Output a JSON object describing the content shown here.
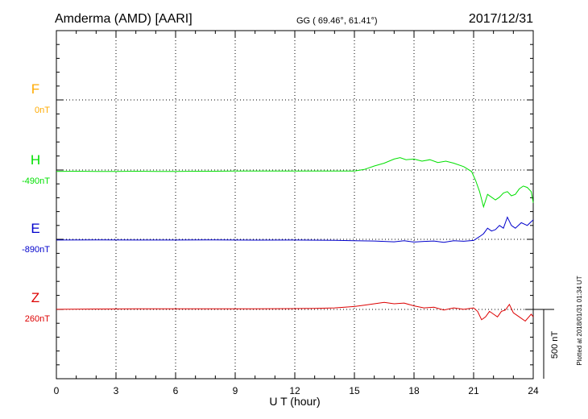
{
  "header": {
    "station": "Amderma (AMD)  [AARI]",
    "coords": "GG ( 69.46°,  61.41°)",
    "date": "2017/12/31"
  },
  "footer": {
    "xlabel": "U T (hour)",
    "plotted": "Plotted at 2018/01/31 01:34 UT",
    "scale_label": "500 nT"
  },
  "colors": {
    "F": "#ffaa00",
    "H": "#00e000",
    "E": "#0000cc",
    "Z": "#dd0000",
    "axis": "#000000",
    "grid": "#000000"
  },
  "chart_data": {
    "type": "line",
    "xlim": [
      0,
      24
    ],
    "x_ticks": [
      "0",
      "3",
      "6",
      "9",
      "12",
      "15",
      "18",
      "21",
      "24"
    ],
    "grid": true,
    "scale_bar_nT": 500,
    "series": [
      {
        "name": "F",
        "baseline_label": "0nT",
        "color": "#ffaa00",
        "points": []
      },
      {
        "name": "H",
        "baseline_label": "-490nT",
        "color": "#00e000",
        "points": [
          [
            0,
            -4
          ],
          [
            1,
            -3
          ],
          [
            2,
            -4
          ],
          [
            3,
            -4
          ],
          [
            4,
            -3
          ],
          [
            5,
            -4
          ],
          [
            6,
            -4
          ],
          [
            7,
            -3
          ],
          [
            8,
            -3
          ],
          [
            9,
            -2
          ],
          [
            10,
            -2
          ],
          [
            11,
            -2
          ],
          [
            12,
            -2
          ],
          [
            13,
            -1
          ],
          [
            14,
            -1
          ],
          [
            15,
            -1
          ],
          [
            15.5,
            10
          ],
          [
            16,
            35
          ],
          [
            16.5,
            55
          ],
          [
            17,
            85
          ],
          [
            17.3,
            95
          ],
          [
            17.6,
            80
          ],
          [
            18,
            85
          ],
          [
            18.4,
            70
          ],
          [
            18.8,
            80
          ],
          [
            19.2,
            60
          ],
          [
            19.6,
            70
          ],
          [
            20,
            55
          ],
          [
            20.5,
            30
          ],
          [
            20.9,
            -5
          ],
          [
            21.1,
            -70
          ],
          [
            21.3,
            -150
          ],
          [
            21.5,
            -260
          ],
          [
            21.7,
            -170
          ],
          [
            21.9,
            -190
          ],
          [
            22.1,
            -210
          ],
          [
            22.3,
            -190
          ],
          [
            22.5,
            -160
          ],
          [
            22.7,
            -150
          ],
          [
            22.9,
            -180
          ],
          [
            23.1,
            -170
          ],
          [
            23.3,
            -130
          ],
          [
            23.5,
            -110
          ],
          [
            23.7,
            -120
          ],
          [
            23.9,
            -150
          ],
          [
            24,
            -230
          ]
        ]
      },
      {
        "name": "E",
        "baseline_label": "-890nT",
        "color": "#0000cc",
        "points": [
          [
            0,
            -5
          ],
          [
            2,
            -4
          ],
          [
            4,
            -5
          ],
          [
            6,
            -5
          ],
          [
            8,
            -4
          ],
          [
            10,
            -6
          ],
          [
            12,
            -5
          ],
          [
            14,
            -7
          ],
          [
            15,
            -10
          ],
          [
            16,
            -12
          ],
          [
            17,
            -18
          ],
          [
            17.5,
            -10
          ],
          [
            18,
            -20
          ],
          [
            18.5,
            -15
          ],
          [
            19,
            -12
          ],
          [
            19.5,
            -22
          ],
          [
            20,
            -10
          ],
          [
            20.5,
            -14
          ],
          [
            21,
            -8
          ],
          [
            21.3,
            20
          ],
          [
            21.5,
            40
          ],
          [
            21.7,
            80
          ],
          [
            21.9,
            60
          ],
          [
            22.1,
            70
          ],
          [
            22.3,
            100
          ],
          [
            22.5,
            80
          ],
          [
            22.7,
            160
          ],
          [
            22.9,
            100
          ],
          [
            23.1,
            80
          ],
          [
            23.4,
            120
          ],
          [
            23.7,
            100
          ],
          [
            24,
            140
          ]
        ]
      },
      {
        "name": "Z",
        "baseline_label": "260nT",
        "color": "#dd0000",
        "points": [
          [
            0,
            -5
          ],
          [
            2,
            -3
          ],
          [
            4,
            -2
          ],
          [
            6,
            -2
          ],
          [
            8,
            -2
          ],
          [
            10,
            -1
          ],
          [
            12,
            0
          ],
          [
            13,
            2
          ],
          [
            14,
            5
          ],
          [
            15,
            15
          ],
          [
            15.5,
            25
          ],
          [
            16,
            35
          ],
          [
            16.5,
            45
          ],
          [
            17,
            35
          ],
          [
            17.5,
            40
          ],
          [
            18,
            20
          ],
          [
            18.5,
            5
          ],
          [
            19,
            10
          ],
          [
            19.5,
            -10
          ],
          [
            20,
            5
          ],
          [
            20.5,
            -5
          ],
          [
            21,
            5
          ],
          [
            21.2,
            -20
          ],
          [
            21.4,
            -80
          ],
          [
            21.6,
            -60
          ],
          [
            21.8,
            -20
          ],
          [
            22,
            -40
          ],
          [
            22.2,
            -60
          ],
          [
            22.4,
            -20
          ],
          [
            22.6,
            -10
          ],
          [
            22.8,
            30
          ],
          [
            23,
            -30
          ],
          [
            23.3,
            -60
          ],
          [
            23.6,
            -90
          ],
          [
            23.9,
            -40
          ],
          [
            24,
            -60
          ]
        ]
      }
    ]
  }
}
